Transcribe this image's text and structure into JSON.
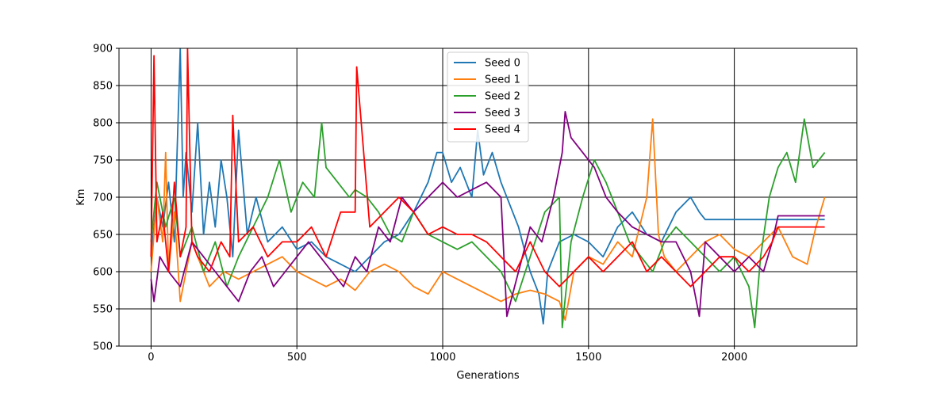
{
  "chart_data": {
    "type": "line",
    "title": "",
    "xlabel": "Generations",
    "ylabel": "Km",
    "xlim": [
      -110,
      2420
    ],
    "ylim": [
      500,
      900
    ],
    "xticks": [
      0,
      500,
      1000,
      1500,
      2000
    ],
    "yticks": [
      500,
      550,
      600,
      650,
      700,
      750,
      800,
      850,
      900
    ],
    "grid": true,
    "legend": "top-center",
    "series": [
      {
        "name": "Seed 0",
        "color": "#1f77b4",
        "x": [
          0,
          20,
          40,
          60,
          80,
          100,
          110,
          120,
          140,
          160,
          180,
          200,
          220,
          240,
          260,
          280,
          300,
          330,
          360,
          400,
          450,
          500,
          550,
          600,
          650,
          700,
          750,
          800,
          850,
          900,
          950,
          980,
          1000,
          1030,
          1060,
          1100,
          1120,
          1140,
          1170,
          1200,
          1230,
          1260,
          1300,
          1330,
          1345,
          1360,
          1400,
          1450,
          1500,
          1550,
          1600,
          1650,
          1700,
          1750,
          1800,
          1850,
          1880,
          1900,
          2000,
          2100,
          2200,
          2310
        ],
        "y": [
          620,
          700,
          660,
          720,
          640,
          900,
          700,
          760,
          680,
          800,
          650,
          720,
          660,
          750,
          700,
          620,
          790,
          650,
          700,
          640,
          660,
          630,
          640,
          620,
          610,
          600,
          620,
          640,
          650,
          680,
          720,
          760,
          760,
          720,
          740,
          700,
          790,
          730,
          760,
          720,
          690,
          660,
          600,
          570,
          530,
          600,
          640,
          650,
          640,
          620,
          660,
          680,
          650,
          640,
          680,
          700,
          680,
          670,
          670,
          670,
          670,
          670
        ]
      },
      {
        "name": "Seed 1",
        "color": "#ff7f0e",
        "x": [
          0,
          20,
          40,
          50,
          60,
          80,
          100,
          120,
          140,
          160,
          180,
          200,
          250,
          300,
          350,
          400,
          450,
          500,
          550,
          600,
          650,
          700,
          750,
          800,
          850,
          900,
          950,
          1000,
          1050,
          1100,
          1150,
          1200,
          1250,
          1300,
          1350,
          1400,
          1420,
          1450,
          1500,
          1550,
          1600,
          1650,
          1700,
          1720,
          1740,
          1760,
          1800,
          1850,
          1900,
          1950,
          2000,
          2050,
          2100,
          2150,
          2200,
          2250,
          2280,
          2310
        ],
        "y": [
          600,
          700,
          640,
          760,
          600,
          680,
          560,
          600,
          640,
          620,
          600,
          580,
          600,
          590,
          600,
          610,
          620,
          600,
          590,
          580,
          590,
          575,
          600,
          610,
          600,
          580,
          570,
          600,
          590,
          580,
          570,
          560,
          570,
          575,
          570,
          560,
          535,
          600,
          620,
          610,
          640,
          620,
          700,
          805,
          650,
          620,
          600,
          620,
          640,
          650,
          630,
          620,
          640,
          660,
          620,
          610,
          660,
          700
        ]
      },
      {
        "name": "Seed 2",
        "color": "#2ca02c",
        "x": [
          0,
          20,
          50,
          80,
          100,
          140,
          180,
          220,
          260,
          300,
          350,
          400,
          440,
          480,
          520,
          560,
          585,
          600,
          640,
          680,
          700,
          740,
          780,
          820,
          860,
          900,
          950,
          1000,
          1050,
          1100,
          1150,
          1200,
          1250,
          1300,
          1350,
          1400,
          1410,
          1440,
          1480,
          1520,
          1560,
          1600,
          1640,
          1680,
          1720,
          1760,
          1800,
          1850,
          1900,
          1950,
          2000,
          2050,
          2070,
          2090,
          2120,
          2150,
          2180,
          2210,
          2240,
          2270,
          2310
        ],
        "y": [
          640,
          720,
          660,
          700,
          620,
          660,
          600,
          640,
          580,
          620,
          660,
          700,
          750,
          680,
          720,
          700,
          800,
          740,
          720,
          700,
          710,
          700,
          680,
          650,
          640,
          680,
          650,
          640,
          630,
          640,
          620,
          600,
          560,
          620,
          680,
          700,
          525,
          640,
          700,
          750,
          720,
          680,
          640,
          620,
          600,
          640,
          660,
          640,
          620,
          600,
          620,
          580,
          525,
          620,
          700,
          740,
          760,
          720,
          805,
          740,
          760
        ]
      },
      {
        "name": "Seed 3",
        "color": "#800080",
        "x": [
          0,
          10,
          30,
          60,
          100,
          140,
          180,
          220,
          260,
          300,
          340,
          380,
          420,
          460,
          500,
          540,
          580,
          620,
          660,
          700,
          740,
          780,
          820,
          860,
          900,
          950,
          1000,
          1050,
          1100,
          1150,
          1200,
          1220,
          1260,
          1300,
          1340,
          1380,
          1410,
          1420,
          1440,
          1480,
          1520,
          1560,
          1600,
          1650,
          1700,
          1750,
          1800,
          1850,
          1880,
          1900,
          1950,
          2000,
          2050,
          2100,
          2130,
          2150,
          2200,
          2310
        ],
        "y": [
          590,
          560,
          620,
          600,
          580,
          640,
          620,
          600,
          580,
          560,
          600,
          620,
          580,
          600,
          620,
          640,
          620,
          600,
          580,
          620,
          600,
          660,
          640,
          700,
          680,
          700,
          720,
          700,
          710,
          720,
          700,
          540,
          600,
          660,
          640,
          700,
          760,
          815,
          780,
          760,
          740,
          700,
          680,
          660,
          650,
          640,
          640,
          600,
          540,
          640,
          620,
          600,
          620,
          600,
          640,
          675,
          675,
          675
        ]
      },
      {
        "name": "Seed 4",
        "color": "#ff0000",
        "x": [
          0,
          10,
          20,
          40,
          60,
          80,
          100,
          120,
          125,
          140,
          160,
          200,
          240,
          270,
          280,
          300,
          350,
          400,
          450,
          500,
          550,
          600,
          650,
          700,
          705,
          750,
          800,
          850,
          900,
          950,
          1000,
          1050,
          1100,
          1150,
          1200,
          1250,
          1300,
          1350,
          1400,
          1450,
          1500,
          1550,
          1600,
          1650,
          1700,
          1750,
          1800,
          1850,
          1900,
          1950,
          2000,
          2050,
          2100,
          2130,
          2150,
          2200,
          2310
        ],
        "y": [
          620,
          890,
          640,
          680,
          600,
          720,
          620,
          660,
          900,
          640,
          620,
          600,
          640,
          620,
          810,
          640,
          660,
          620,
          640,
          640,
          660,
          620,
          680,
          680,
          875,
          660,
          680,
          700,
          680,
          650,
          660,
          650,
          650,
          640,
          620,
          600,
          640,
          600,
          580,
          600,
          620,
          600,
          620,
          640,
          600,
          620,
          600,
          580,
          600,
          620,
          620,
          600,
          620,
          640,
          660,
          660,
          660
        ]
      }
    ]
  }
}
